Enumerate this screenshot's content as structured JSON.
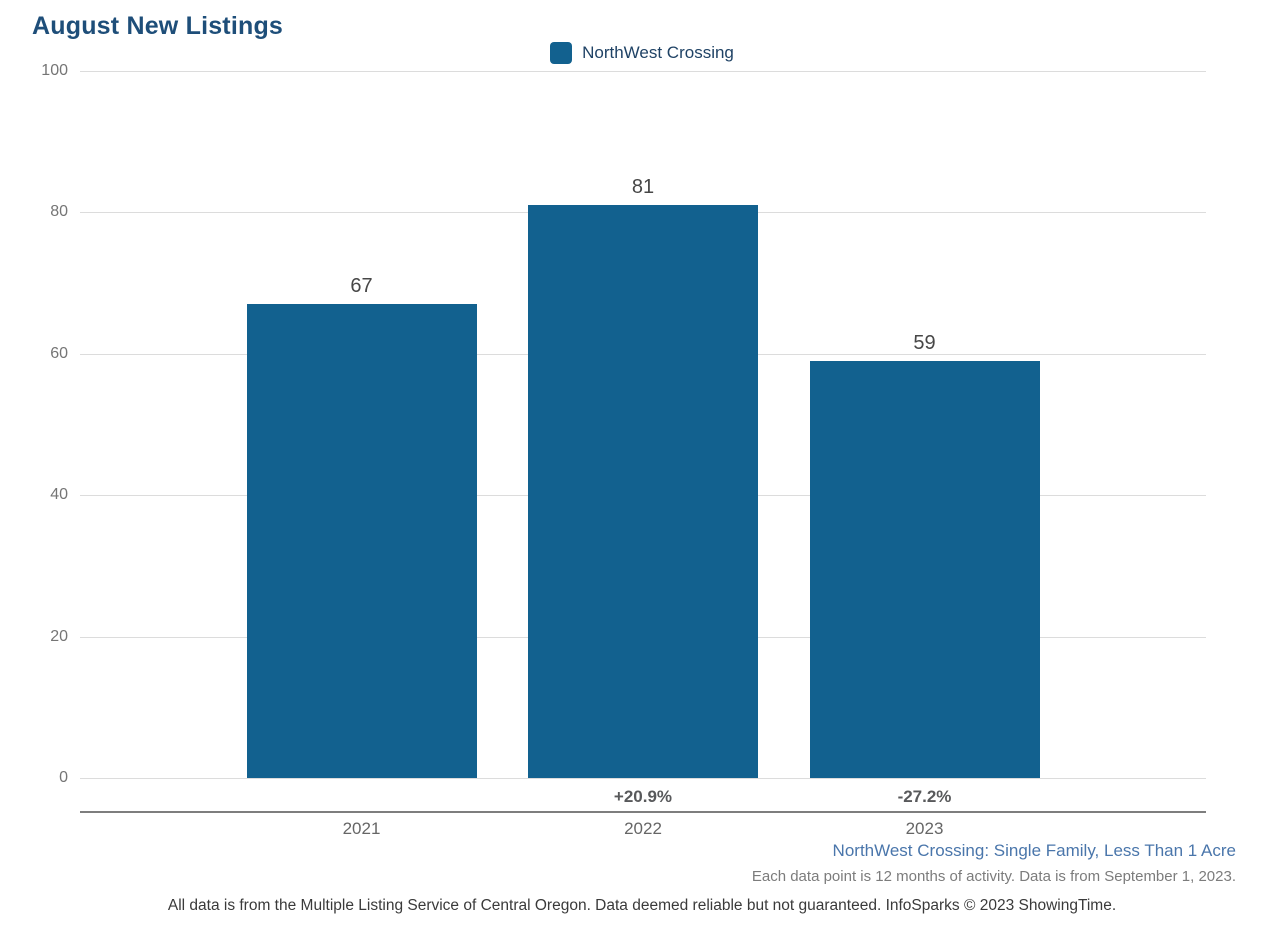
{
  "title": "August New Listings",
  "legend": {
    "label": "NorthWest Crossing",
    "swatch_icon": "series-color-swatch",
    "swatch_color": "#12618F"
  },
  "chart_data": {
    "type": "bar",
    "title": "August New Listings",
    "categories": [
      "2021",
      "2022",
      "2023"
    ],
    "values": [
      67,
      81,
      59
    ],
    "value_labels": [
      "67",
      "81",
      "59"
    ],
    "pct_change_labels": [
      "",
      "+20.9%",
      "-27.2%"
    ],
    "series": [
      {
        "name": "NorthWest Crossing",
        "values": [
          67,
          81,
          59
        ]
      }
    ],
    "xlabel": "",
    "ylabel": "",
    "ylim": [
      0,
      100
    ],
    "yticks": [
      0,
      20,
      40,
      60,
      80,
      100
    ],
    "grid": "horizontal-light-gray",
    "legend_position": "top-center",
    "bar_color": "#12618F"
  },
  "footer": {
    "series_note": "NorthWest Crossing: Single Family, Less Than 1 Acre",
    "data_note": "Each data point is 12 months of activity. Data is from September 1, 2023.",
    "disclaimer": "All data is from the Multiple Listing Service of Central Oregon. Data deemed reliable but not guaranteed. InfoSparks © 2023 ShowingTime."
  },
  "colors": {
    "bar": "#12618F",
    "title_text": "#1E4E79",
    "legend_text": "#1F4265",
    "value_label": "#474747",
    "y_tick_label": "#757575",
    "x_tick_label": "#666666",
    "pct_label": "#58595B",
    "gridline": "#DCDCDC",
    "axis_line": "#7E7E7E",
    "series_note_text": "#4A76AB",
    "data_note_text": "#7C7C7C",
    "disclaimer_text": "#3A3A3A",
    "background": "#FFFFFF"
  }
}
